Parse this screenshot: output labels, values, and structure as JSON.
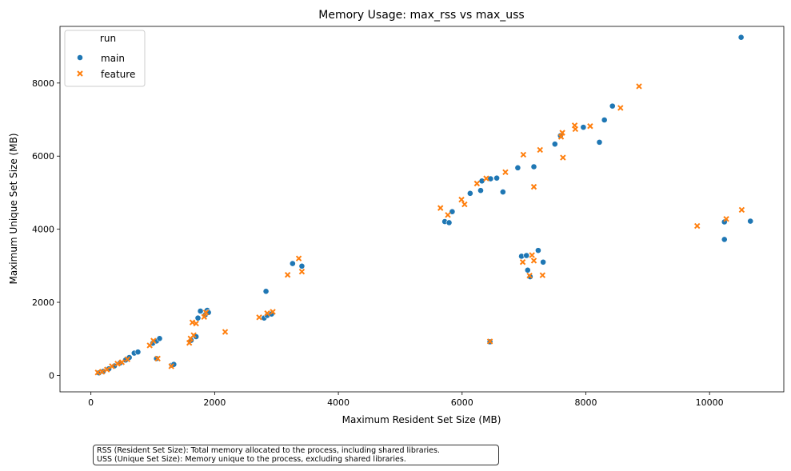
{
  "chart_data": {
    "type": "scatter",
    "title": "Memory Usage: max_rss vs max_uss",
    "xlabel": "Maximum Resident Set Size (MB)",
    "ylabel": "Maximum Unique Set Size (MB)",
    "xlim": [
      -500,
      11200
    ],
    "ylim": [
      -450,
      9550
    ],
    "xticks": [
      0,
      2000,
      4000,
      6000,
      8000,
      10000
    ],
    "yticks": [
      0,
      2000,
      4000,
      6000,
      8000
    ],
    "legend": {
      "title": "run",
      "placement": "top-left"
    },
    "series": [
      {
        "name": "main",
        "marker": "circle",
        "color": "#1f77b4",
        "points": [
          [
            130,
            70
          ],
          [
            200,
            110
          ],
          [
            290,
            180
          ],
          [
            380,
            260
          ],
          [
            470,
            340
          ],
          [
            560,
            420
          ],
          [
            620,
            490
          ],
          [
            700,
            610
          ],
          [
            760,
            640
          ],
          [
            1000,
            880
          ],
          [
            1060,
            940
          ],
          [
            1110,
            1010
          ],
          [
            1060,
            460
          ],
          [
            1310,
            280
          ],
          [
            1340,
            300
          ],
          [
            1620,
            960
          ],
          [
            1700,
            1060
          ],
          [
            1730,
            1570
          ],
          [
            1770,
            1760
          ],
          [
            1850,
            1660
          ],
          [
            1880,
            1780
          ],
          [
            1900,
            1720
          ],
          [
            2800,
            1570
          ],
          [
            2850,
            1640
          ],
          [
            2920,
            1680
          ],
          [
            2830,
            2300
          ],
          [
            3260,
            3060
          ],
          [
            3410,
            2990
          ],
          [
            5720,
            4210
          ],
          [
            5790,
            4180
          ],
          [
            5840,
            4480
          ],
          [
            6130,
            4980
          ],
          [
            6300,
            5060
          ],
          [
            6320,
            5320
          ],
          [
            6460,
            5380
          ],
          [
            6560,
            5400
          ],
          [
            6660,
            5020
          ],
          [
            6900,
            5680
          ],
          [
            7160,
            5710
          ],
          [
            7500,
            6330
          ],
          [
            7590,
            6560
          ],
          [
            7960,
            6790
          ],
          [
            8220,
            6380
          ],
          [
            8300,
            6990
          ],
          [
            8430,
            7370
          ],
          [
            6960,
            3260
          ],
          [
            7040,
            3280
          ],
          [
            7060,
            2880
          ],
          [
            7100,
            2700
          ],
          [
            7230,
            3420
          ],
          [
            7310,
            3100
          ],
          [
            6450,
            920
          ],
          [
            10240,
            4200
          ],
          [
            10240,
            3720
          ],
          [
            10660,
            4220
          ],
          [
            10510,
            9250
          ]
        ]
      },
      {
        "name": "feature",
        "marker": "x",
        "color": "#ff7f0e",
        "points": [
          [
            110,
            80
          ],
          [
            180,
            100
          ],
          [
            260,
            160
          ],
          [
            340,
            250
          ],
          [
            430,
            320
          ],
          [
            500,
            360
          ],
          [
            590,
            440
          ],
          [
            950,
            820
          ],
          [
            1010,
            950
          ],
          [
            1080,
            460
          ],
          [
            1300,
            250
          ],
          [
            1590,
            890
          ],
          [
            1610,
            1010
          ],
          [
            1640,
            1450
          ],
          [
            1700,
            1420
          ],
          [
            1660,
            1100
          ],
          [
            1830,
            1600
          ],
          [
            1860,
            1720
          ],
          [
            2170,
            1190
          ],
          [
            2720,
            1590
          ],
          [
            2850,
            1700
          ],
          [
            2940,
            1740
          ],
          [
            3180,
            2750
          ],
          [
            3360,
            3200
          ],
          [
            3410,
            2840
          ],
          [
            5650,
            4580
          ],
          [
            5770,
            4390
          ],
          [
            5990,
            4810
          ],
          [
            6040,
            4680
          ],
          [
            6240,
            5250
          ],
          [
            6390,
            5390
          ],
          [
            6700,
            5560
          ],
          [
            6990,
            6040
          ],
          [
            7260,
            6170
          ],
          [
            7160,
            5160
          ],
          [
            7600,
            6530
          ],
          [
            7620,
            6640
          ],
          [
            7630,
            5960
          ],
          [
            7820,
            6840
          ],
          [
            7830,
            6740
          ],
          [
            8070,
            6820
          ],
          [
            8560,
            7320
          ],
          [
            8860,
            7910
          ],
          [
            6980,
            3100
          ],
          [
            7090,
            2730
          ],
          [
            7130,
            3290
          ],
          [
            7160,
            3140
          ],
          [
            7300,
            2740
          ],
          [
            6450,
            930
          ],
          [
            9800,
            4090
          ],
          [
            10270,
            4280
          ],
          [
            10520,
            4530
          ]
        ]
      }
    ]
  },
  "note": {
    "line1": "RSS (Resident Set Size): Total memory allocated to the process, including shared libraries.",
    "line2": "USS (Unique Set Size): Memory unique to the process, excluding shared libraries."
  }
}
